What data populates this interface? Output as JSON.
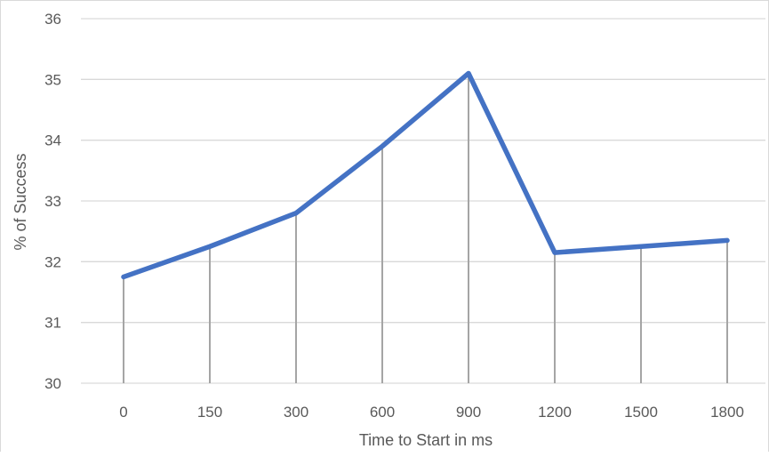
{
  "chart_data": {
    "type": "line",
    "title": "",
    "xlabel": "Time to Start in ms",
    "ylabel": "% of Success",
    "categories": [
      "0",
      "150",
      "300",
      "600",
      "900",
      "1200",
      "1500",
      "1800"
    ],
    "series": [
      {
        "values": [
          31.75,
          32.25,
          32.8,
          33.9,
          35.1,
          32.15,
          32.25,
          32.35
        ]
      }
    ],
    "ylim": [
      30,
      36
    ],
    "yticks": [
      "30",
      "31",
      "32",
      "33",
      "34",
      "35",
      "36"
    ],
    "drop_lines": true,
    "grid": "horizontal",
    "legend": "none",
    "colors": {
      "line": "#4472c4",
      "grid": "#d9d9d9",
      "drop": "#a5a5a5",
      "text": "#595959"
    }
  }
}
